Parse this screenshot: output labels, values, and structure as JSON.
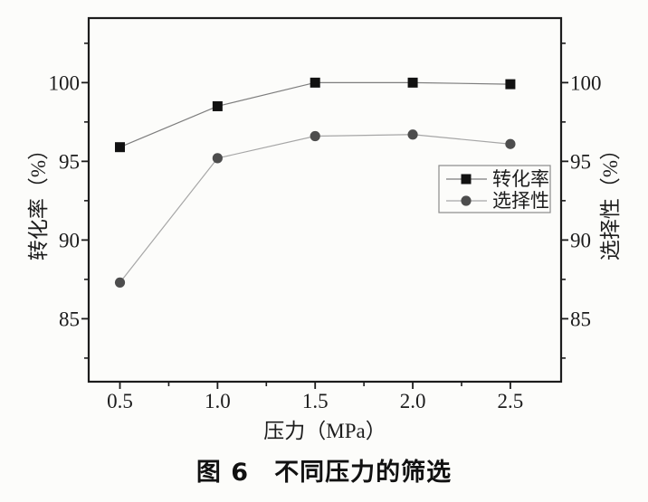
{
  "figure": {
    "caption": "图 6　不同压力的筛选"
  },
  "chart_data": {
    "type": "line",
    "title": "",
    "xlabel": "压力（MPa）",
    "ylabel_left": "转化率（%）",
    "ylabel_right": "选择性（%）",
    "x": [
      0.5,
      1.0,
      1.5,
      2.0,
      2.5
    ],
    "series": [
      {
        "name": "转化率",
        "marker": "square",
        "marker_color": "#111111",
        "line_color": "#7d7d7d",
        "values": [
          95.9,
          98.5,
          100.0,
          100.0,
          99.9
        ]
      },
      {
        "name": "选择性",
        "marker": "circle",
        "marker_color": "#4d4d4d",
        "line_color": "#a6a6a6",
        "values": [
          87.3,
          95.2,
          96.6,
          96.7,
          96.1
        ]
      }
    ],
    "xlim": [
      0.34,
      2.76
    ],
    "ylim": [
      81.0,
      104.1
    ],
    "xticks": {
      "major": [
        0.5,
        1.0,
        1.5,
        2.0,
        2.5
      ],
      "labels": [
        "0.5",
        "1.0",
        "1.5",
        "2.0",
        "2.5"
      ],
      "minor": [
        0.75,
        1.25,
        1.75,
        2.25
      ]
    },
    "yticks": {
      "major": [
        85,
        90,
        95,
        100
      ],
      "labels": [
        "85",
        "90",
        "95",
        "100"
      ],
      "minor": [
        82.5,
        87.5,
        92.5,
        97.5,
        102.5
      ]
    },
    "legend": {
      "position": "right-middle",
      "entries": [
        "转化率",
        "选择性"
      ]
    },
    "grid": false,
    "axis_color": "#1c1c1c",
    "background": "#fcfcfa"
  }
}
